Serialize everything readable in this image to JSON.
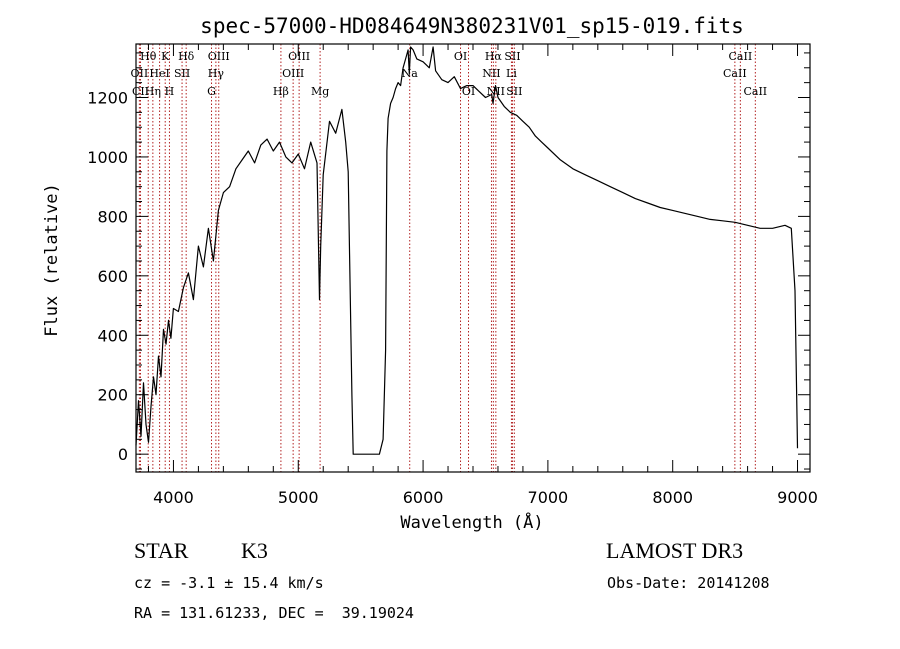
{
  "chart_data": {
    "type": "line",
    "title": "spec-57000-HD084649N380231V01_sp15-019.fits",
    "xlabel": "Wavelength (Å)",
    "ylabel": "Flux (relative)",
    "xlim": [
      3700,
      9100
    ],
    "ylim": [
      -60,
      1380
    ],
    "xticks": [
      4000,
      5000,
      6000,
      7000,
      8000,
      9000
    ],
    "yticks": [
      0,
      200,
      400,
      600,
      800,
      1000,
      1200
    ],
    "grid": false,
    "series": [
      {
        "x": [
          3700,
          3720,
          3740,
          3760,
          3780,
          3800,
          3820,
          3840,
          3860,
          3880,
          3900,
          3920,
          3940,
          3960,
          3980,
          4000,
          4040,
          4080,
          4120,
          4160,
          4200,
          4240,
          4280,
          4320,
          4360,
          4400,
          4450,
          4500,
          4550,
          4600,
          4650,
          4700,
          4750,
          4800,
          4850,
          4900,
          4950,
          5000,
          5050,
          5100,
          5150,
          5170,
          5180,
          5200,
          5250,
          5300,
          5350,
          5380,
          5400,
          5430,
          5440,
          5460,
          5480,
          5650,
          5680,
          5700,
          5710,
          5720,
          5740,
          5760,
          5780,
          5800,
          5820,
          5840,
          5860,
          5880,
          5890,
          5900,
          5920,
          5950,
          6000,
          6050,
          6080,
          6100,
          6150,
          6200,
          6250,
          6300,
          6350,
          6400,
          6450,
          6500,
          6550,
          6560,
          6580,
          6600,
          6650,
          6700,
          6750,
          6800,
          6850,
          6900,
          6950,
          7000,
          7100,
          7200,
          7300,
          7400,
          7500,
          7600,
          7700,
          7800,
          7900,
          8000,
          8100,
          8200,
          8300,
          8400,
          8500,
          8600,
          8700,
          8800,
          8900,
          8950,
          8980,
          9000
        ],
        "y": [
          30,
          180,
          60,
          240,
          100,
          40,
          160,
          260,
          200,
          330,
          260,
          420,
          370,
          450,
          390,
          490,
          480,
          560,
          610,
          520,
          700,
          630,
          760,
          650,
          820,
          880,
          900,
          960,
          990,
          1020,
          980,
          1040,
          1060,
          1020,
          1050,
          1000,
          980,
          1010,
          960,
          1050,
          980,
          520,
          700,
          940,
          1120,
          1080,
          1160,
          1050,
          950,
          200,
          0,
          0,
          0,
          0,
          50,
          350,
          1020,
          1130,
          1180,
          1200,
          1230,
          1250,
          1240,
          1300,
          1330,
          1360,
          1280,
          1370,
          1360,
          1330,
          1320,
          1300,
          1370,
          1290,
          1260,
          1250,
          1270,
          1230,
          1240,
          1240,
          1220,
          1200,
          1210,
          1180,
          1240,
          1200,
          1170,
          1150,
          1140,
          1120,
          1100,
          1070,
          1050,
          1030,
          990,
          960,
          940,
          920,
          900,
          880,
          860,
          845,
          830,
          820,
          810,
          800,
          790,
          785,
          780,
          770,
          760,
          760,
          770,
          760,
          550,
          20
        ]
      }
    ],
    "annotations": [
      {
        "text": "Hθ",
        "x": 3798,
        "level": 1
      },
      {
        "text": "OII",
        "x": 3727,
        "level": 2
      },
      {
        "text": "CII",
        "x": 3736,
        "level": 3
      },
      {
        "text": "Hη",
        "x": 3835,
        "level": 3
      },
      {
        "text": "HeI",
        "x": 3889,
        "level": 2
      },
      {
        "text": "K",
        "x": 3934,
        "level": 1
      },
      {
        "text": "H",
        "x": 3968,
        "level": 3
      },
      {
        "text": "SII",
        "x": 4069,
        "level": 2
      },
      {
        "text": "Hδ",
        "x": 4102,
        "level": 1
      },
      {
        "text": "OIII",
        "x": 4363,
        "level": 1
      },
      {
        "text": "Hγ",
        "x": 4340,
        "level": 2
      },
      {
        "text": "G",
        "x": 4305,
        "level": 3
      },
      {
        "text": "Hβ",
        "x": 4861,
        "level": 3
      },
      {
        "text": "OIII",
        "x": 5007,
        "level": 1
      },
      {
        "text": "OIII",
        "x": 4959,
        "level": 2
      },
      {
        "text": "Mg",
        "x": 5175,
        "level": 3
      },
      {
        "text": "Na",
        "x": 5893,
        "level": 2
      },
      {
        "text": "OI",
        "x": 6300,
        "level": 1
      },
      {
        "text": "OI",
        "x": 6364,
        "level": 3
      },
      {
        "text": "Hα",
        "x": 6563,
        "level": 1
      },
      {
        "text": "NII",
        "x": 6548,
        "level": 2
      },
      {
        "text": "NII",
        "x": 6583,
        "level": 3
      },
      {
        "text": "SII",
        "x": 6716,
        "level": 1
      },
      {
        "text": "Li",
        "x": 6708,
        "level": 2
      },
      {
        "text": "SII",
        "x": 6731,
        "level": 3
      },
      {
        "text": "CaII",
        "x": 8542,
        "level": 1
      },
      {
        "text": "CaII",
        "x": 8498,
        "level": 2
      },
      {
        "text": "CaII",
        "x": 8662,
        "level": 3
      }
    ],
    "marker_lines_x": [
      3727,
      3736,
      3798,
      3835,
      3889,
      3934,
      3968,
      4069,
      4102,
      4305,
      4340,
      4363,
      4861,
      4959,
      5007,
      5175,
      5893,
      6300,
      6364,
      6548,
      6563,
      6583,
      6708,
      6716,
      6731,
      8498,
      8542,
      8662
    ],
    "colors": {
      "spectrum": "#000000",
      "marker_lines": "#b22222",
      "frame": "#000000"
    }
  },
  "info": {
    "object_type": "STAR",
    "subclass": "K3",
    "survey": "LAMOST DR3",
    "redshift": "cz = -3.1 ± 15.4 km/s",
    "obs_date": "Obs-Date: 20141208",
    "coords": "RA = 131.61233, DEC =  39.19024"
  }
}
